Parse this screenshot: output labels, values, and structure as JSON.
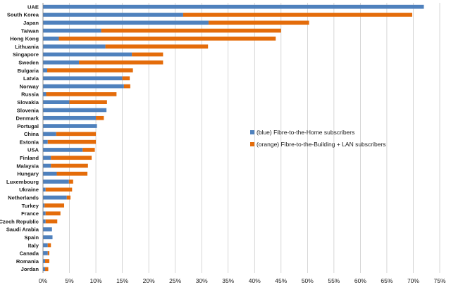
{
  "chart_data": {
    "type": "bar",
    "orientation": "horizontal",
    "stacked": true,
    "categories": [
      "UAE",
      "South Korea",
      "Japan",
      "Taiwan",
      "Hong Kong",
      "Lithuania",
      "Singapore",
      "Sweden",
      "Bulgaria",
      "Latvia",
      "Norway",
      "Russia",
      "Slovakia",
      "Slovenia",
      "Denmark",
      "Portugal",
      "China",
      "Estonia",
      "USA",
      "Finland",
      "Malaysia",
      "Hungary",
      "Luxembourg",
      "Ukraine",
      "Netherlands",
      "Turkey",
      "France",
      "Czech Republic",
      "Saudi Arabia",
      "Spain",
      "Italy",
      "Canada",
      "Romania",
      "Jordan"
    ],
    "series": [
      {
        "name": "(blue) Fibre-to-the-Home subscribers",
        "color": "#4f81bd",
        "values": [
          72.0,
          26.5,
          31.3,
          11.0,
          3.0,
          11.8,
          16.8,
          6.8,
          0.8,
          15.0,
          15.3,
          0.6,
          5.0,
          12.0,
          10.0,
          10.2,
          2.5,
          0.9,
          7.5,
          1.5,
          1.5,
          2.6,
          4.9,
          0.5,
          4.5,
          0.3,
          0.5,
          0.5,
          1.7,
          1.8,
          0.9,
          0.9,
          0.4,
          0.4
        ]
      },
      {
        "name": "(orange) Fibre-to-the-Building + LAN subscribers",
        "color": "#e46c0a",
        "values": [
          0.0,
          43.3,
          19.0,
          34.0,
          41.0,
          19.4,
          5.9,
          15.9,
          16.2,
          1.4,
          1.2,
          13.3,
          7.1,
          0.0,
          1.5,
          0.0,
          7.5,
          9.1,
          2.3,
          7.7,
          7.0,
          5.8,
          0.8,
          5.0,
          0.7,
          3.7,
          2.8,
          2.2,
          0.0,
          0.0,
          0.6,
          0.3,
          0.8,
          0.6
        ]
      }
    ],
    "xlim": [
      0,
      75
    ],
    "xticks": [
      "0%",
      "5%",
      "10%",
      "15%",
      "20%",
      "25%",
      "30%",
      "35%",
      "40%",
      "45%",
      "50%",
      "55%",
      "60%",
      "65%",
      "70%",
      "75%"
    ],
    "grid": true,
    "legend_position": "right-center"
  }
}
